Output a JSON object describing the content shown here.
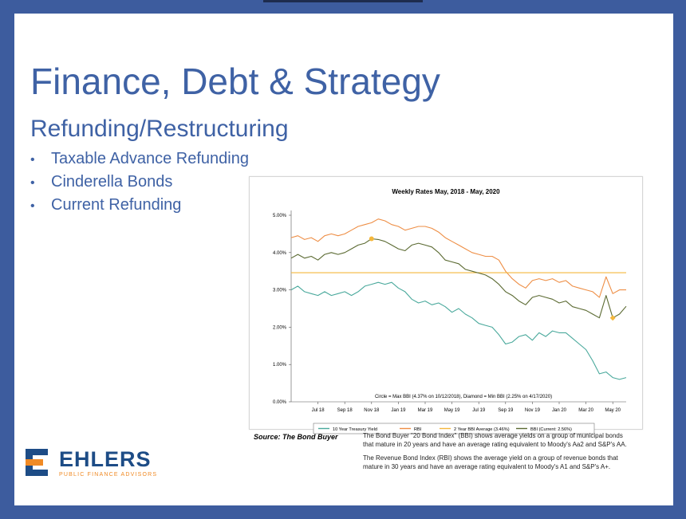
{
  "slide": {
    "title": "Finance, Debt & Strategy",
    "subtitle": "Refunding/Restructuring",
    "bullets": [
      "Taxable Advance Refunding",
      "Cinderella Bonds",
      "Current Refunding"
    ],
    "source": "Source: The Bond Buyer",
    "note1": "The Bond Buyer \"20 Bond Index\" (BBI) shows average yields on a group of municipal bonds that mature in 20 years and have an average rating equivalent to Moody's Aa2 and S&P's AA.",
    "note2": "The Revenue Bond Index (RBI) shows the average yield on a group of revenue bonds that mature in 30 years and have an average rating equivalent to Moody's A1 and S&P's A+.",
    "logo": {
      "word": "EHLERS",
      "tagline": "PUBLIC FINANCE ADVISORS"
    }
  },
  "colors": {
    "treasury": "#4aa99c",
    "rbi": "#ee8e45",
    "avg": "#f4b73c",
    "bbi": "#5b6a32",
    "title": "#3f62a5",
    "frame": "#3d5c9e"
  },
  "chart_data": {
    "type": "line",
    "title": "Weekly Rates May, 2018 - May, 2020",
    "annotation": "Circle = Max BBI (4.37% on 10/12/2018), Diamond = Min BBI (2.25% on 4/17/2020)",
    "ylim": [
      0,
      5
    ],
    "yticks": [
      0,
      1,
      2,
      3,
      4,
      5
    ],
    "ytick_labels": [
      "0.00%",
      "1.00%",
      "2.00%",
      "3.00%",
      "4.00%",
      "5.00%"
    ],
    "xlim": [
      0,
      25
    ],
    "xticks": [
      2,
      4,
      6,
      8,
      10,
      12,
      14,
      16,
      18,
      20,
      22,
      24
    ],
    "xtick_labels": [
      "Jul 18",
      "Sep 18",
      "Nov 18",
      "Jan 19",
      "Mar 19",
      "May 19",
      "Jul 19",
      "Sep 19",
      "Nov 19",
      "Jan 20",
      "Mar 20",
      "May 20"
    ],
    "legend_position": "bottom",
    "grid": false,
    "x": [
      0,
      0.5,
      1,
      1.5,
      2,
      2.5,
      3,
      3.5,
      4,
      4.5,
      5,
      5.5,
      6,
      6.5,
      7,
      7.5,
      8,
      8.5,
      9,
      9.5,
      10,
      10.5,
      11,
      11.5,
      12,
      12.5,
      13,
      13.5,
      14,
      14.5,
      15,
      15.5,
      16,
      16.5,
      17,
      17.5,
      18,
      18.5,
      19,
      19.5,
      20,
      20.5,
      21,
      21.5,
      22,
      22.5,
      23,
      23.5,
      24,
      24.5,
      25
    ],
    "series": [
      {
        "name": "10 Year Treasury Yield",
        "values": [
          3.0,
          3.1,
          2.95,
          2.9,
          2.85,
          2.95,
          2.85,
          2.9,
          2.95,
          2.85,
          2.95,
          3.1,
          3.15,
          3.2,
          3.15,
          3.2,
          3.05,
          2.95,
          2.75,
          2.65,
          2.7,
          2.6,
          2.65,
          2.55,
          2.4,
          2.5,
          2.35,
          2.25,
          2.1,
          2.05,
          2.0,
          1.8,
          1.55,
          1.6,
          1.75,
          1.8,
          1.65,
          1.85,
          1.75,
          1.9,
          1.85,
          1.85,
          1.7,
          1.55,
          1.4,
          1.1,
          0.75,
          0.8,
          0.65,
          0.6,
          0.65
        ]
      },
      {
        "name": "RBI",
        "values": [
          4.4,
          4.45,
          4.35,
          4.4,
          4.3,
          4.45,
          4.5,
          4.45,
          4.5,
          4.6,
          4.7,
          4.75,
          4.8,
          4.9,
          4.85,
          4.75,
          4.7,
          4.6,
          4.65,
          4.7,
          4.7,
          4.65,
          4.55,
          4.4,
          4.3,
          4.2,
          4.1,
          4.0,
          3.95,
          3.9,
          3.9,
          3.8,
          3.5,
          3.3,
          3.15,
          3.05,
          3.25,
          3.3,
          3.25,
          3.3,
          3.2,
          3.25,
          3.1,
          3.05,
          3.0,
          2.95,
          2.8,
          3.35,
          2.9,
          3.0,
          3.0
        ]
      },
      {
        "name": "2 Year BBI Average (3.46%)",
        "values": [
          3.46,
          3.46,
          3.46,
          3.46,
          3.46,
          3.46,
          3.46,
          3.46,
          3.46,
          3.46,
          3.46,
          3.46,
          3.46,
          3.46,
          3.46,
          3.46,
          3.46,
          3.46,
          3.46,
          3.46,
          3.46,
          3.46,
          3.46,
          3.46,
          3.46,
          3.46,
          3.46,
          3.46,
          3.46,
          3.46,
          3.46,
          3.46,
          3.46,
          3.46,
          3.46,
          3.46,
          3.46,
          3.46,
          3.46,
          3.46,
          3.46,
          3.46,
          3.46,
          3.46,
          3.46,
          3.46,
          3.46,
          3.46,
          3.46,
          3.46,
          3.46
        ]
      },
      {
        "name": "BBI (Current: 2.56%)",
        "values": [
          3.85,
          3.95,
          3.85,
          3.9,
          3.8,
          3.95,
          4.0,
          3.95,
          4.0,
          4.1,
          4.2,
          4.25,
          4.37,
          4.35,
          4.3,
          4.2,
          4.1,
          4.05,
          4.2,
          4.25,
          4.2,
          4.15,
          4.0,
          3.8,
          3.75,
          3.7,
          3.55,
          3.5,
          3.45,
          3.4,
          3.3,
          3.15,
          2.95,
          2.85,
          2.7,
          2.6,
          2.8,
          2.85,
          2.8,
          2.75,
          2.65,
          2.7,
          2.55,
          2.5,
          2.45,
          2.35,
          2.25,
          2.85,
          2.25,
          2.35,
          2.56
        ]
      }
    ],
    "markers": [
      {
        "type": "circle",
        "series": "BBI (Current: 2.56%)",
        "x": 6,
        "y": 4.37
      },
      {
        "type": "diamond",
        "series": "BBI (Current: 2.56%)",
        "x": 24,
        "y": 2.25
      }
    ]
  }
}
